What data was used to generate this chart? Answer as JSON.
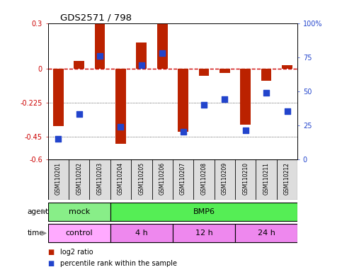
{
  "title": "GDS2571 / 798",
  "samples": [
    "GSM110201",
    "GSM110202",
    "GSM110203",
    "GSM110204",
    "GSM110205",
    "GSM110206",
    "GSM110207",
    "GSM110208",
    "GSM110209",
    "GSM110210",
    "GSM110211",
    "GSM110212"
  ],
  "log2_ratio": [
    -0.38,
    0.05,
    0.3,
    -0.5,
    0.17,
    0.3,
    -0.42,
    -0.05,
    -0.03,
    -0.37,
    -0.08,
    0.02
  ],
  "percentile_rank": [
    15,
    33,
    76,
    24,
    69,
    78,
    20,
    40,
    44,
    21,
    49,
    35
  ],
  "ylim_left": [
    -0.6,
    0.3
  ],
  "yticks_left": [
    0.3,
    0.0,
    -0.225,
    -0.45,
    -0.6
  ],
  "ytick_labels_left": [
    "0.3",
    "0",
    "-0.225",
    "-0.45",
    "-0.6"
  ],
  "yticks_right": [
    100,
    75,
    50,
    25,
    0
  ],
  "ytick_labels_right": [
    "100%",
    "75",
    "50",
    "25",
    "0"
  ],
  "bar_color": "#bb2200",
  "dot_color": "#2244cc",
  "ref_line_color": "#cc0000",
  "grid_color": "#333333",
  "agent_groups": [
    {
      "label": "mock",
      "start": 0,
      "end": 3,
      "color": "#88ee88"
    },
    {
      "label": "BMP6",
      "start": 3,
      "end": 12,
      "color": "#55ee55"
    }
  ],
  "time_groups": [
    {
      "label": "control",
      "start": 0,
      "end": 3,
      "color": "#ffaaff"
    },
    {
      "label": "4 h",
      "start": 3,
      "end": 6,
      "color": "#ee88ee"
    },
    {
      "label": "12 h",
      "start": 6,
      "end": 9,
      "color": "#ee88ee"
    },
    {
      "label": "24 h",
      "start": 9,
      "end": 12,
      "color": "#ee88ee"
    }
  ],
  "xlabel_agent": "agent",
  "xlabel_time": "time",
  "legend_items": [
    {
      "label": "log2 ratio",
      "color": "#bb2200"
    },
    {
      "label": "percentile rank within the sample",
      "color": "#2244cc"
    }
  ],
  "bar_width": 0.5,
  "dot_size": 30,
  "bg_color": "#ffffff",
  "sample_bg": "#dddddd"
}
